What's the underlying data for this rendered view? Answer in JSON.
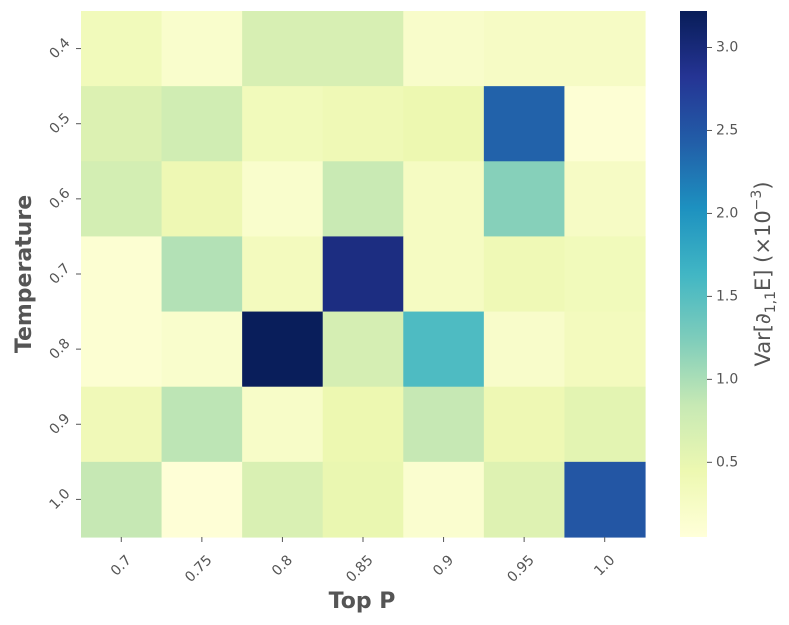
{
  "chart_data": {
    "type": "heatmap",
    "xlabel": "Top P",
    "ylabel": "Temperature",
    "colorbar_label_prefix": "Var[∂",
    "colorbar_label_sub": "1,1",
    "colorbar_label_mid": "E] (×10",
    "colorbar_label_sup": "−3",
    "colorbar_label_suffix": ")",
    "x_categories": [
      "0.7",
      "0.75",
      "0.8",
      "0.85",
      "0.9",
      "0.95",
      "1.0"
    ],
    "y_categories": [
      "0.4",
      "0.5",
      "0.6",
      "0.7",
      "0.8",
      "0.9",
      "1.0"
    ],
    "values": [
      [
        0.35,
        0.18,
        0.68,
        0.68,
        0.2,
        0.25,
        0.25
      ],
      [
        0.62,
        0.75,
        0.35,
        0.4,
        0.45,
        2.4,
        0.1
      ],
      [
        0.72,
        0.42,
        0.18,
        0.82,
        0.28,
        1.2,
        0.25
      ],
      [
        0.12,
        0.95,
        0.32,
        2.95,
        0.28,
        0.4,
        0.35
      ],
      [
        0.12,
        0.18,
        3.2,
        0.7,
        1.55,
        0.2,
        0.32
      ],
      [
        0.38,
        0.9,
        0.22,
        0.45,
        0.85,
        0.42,
        0.55
      ],
      [
        0.85,
        0.08,
        0.65,
        0.48,
        0.15,
        0.6,
        2.5
      ]
    ],
    "colorbar_ticks": [
      "0.5",
      "1.0",
      "1.5",
      "2.0",
      "2.5",
      "3.0"
    ],
    "colorbar_tick_values": [
      0.5,
      1.0,
      1.5,
      2.0,
      2.5,
      3.0
    ],
    "vmin": 0.05,
    "vmax": 3.22,
    "colormap": "YlGnBu",
    "grid": false
  }
}
